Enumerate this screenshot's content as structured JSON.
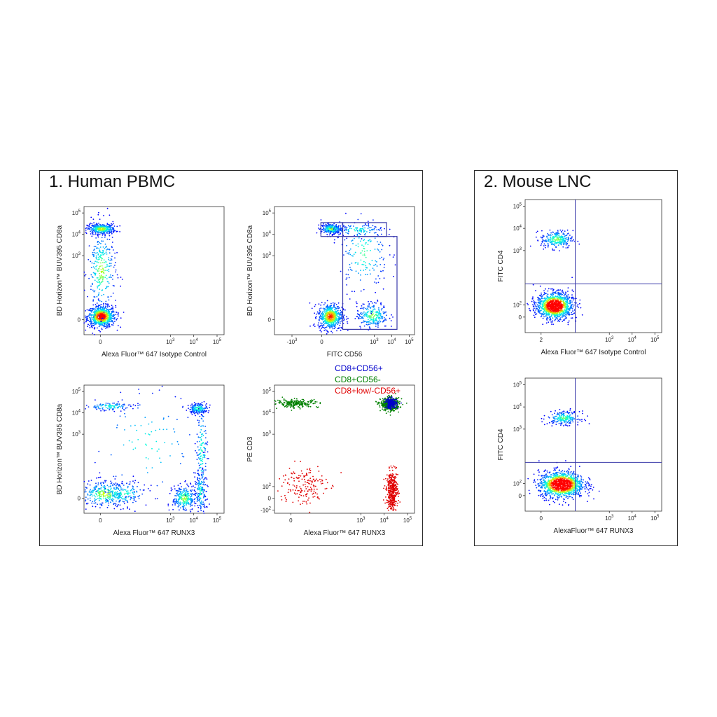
{
  "panels": [
    {
      "title": "1. Human PBMC"
    },
    {
      "title": "2. Mouse LNC"
    }
  ],
  "legend": [
    {
      "label": "CD8+CD56+",
      "color": "#0000cc"
    },
    {
      "label": "CD8+CD56-",
      "color": "#008000"
    },
    {
      "label": "CD8+low/-CD56+",
      "color": "#e00000"
    }
  ],
  "colors": {
    "density_low": "#0000ff",
    "density_mid": "#00ffff",
    "density_midhigh": "#ffff00",
    "density_high": "#ff0000",
    "gate": "#3a3aaa"
  },
  "chart_data": [
    {
      "type": "scatter",
      "panel": "1. Human PBMC",
      "xlabel": "Alexa Fluor™ 647 Isotype Control",
      "ylabel": "BD Horizon™ BUV395 CD8a",
      "xticks": [
        {
          "v": 0,
          "t": "0"
        },
        {
          "v": 3,
          "t": "10",
          "e": "3"
        },
        {
          "v": 4,
          "t": "10",
          "e": "4"
        },
        {
          "v": 5,
          "t": "10",
          "e": "5"
        }
      ],
      "yticks": [
        {
          "v": 0,
          "t": "0"
        },
        {
          "v": 3,
          "t": "10",
          "e": "3"
        },
        {
          "v": 4,
          "t": "10",
          "e": "4"
        },
        {
          "v": 5,
          "t": "10",
          "e": "5"
        }
      ],
      "xlim": [
        -0.7,
        5.3
      ],
      "ylim": [
        -0.7,
        5.3
      ],
      "populations": [
        {
          "x": 0.05,
          "y": 0.15,
          "sx": 0.3,
          "sy": 0.25,
          "weight": 0.55
        },
        {
          "x": 0.05,
          "y": 4.25,
          "sx": 0.3,
          "sy": 0.12,
          "weight": 0.25
        },
        {
          "x": 0.05,
          "y": 2.3,
          "sx": 0.3,
          "sy": 1.0,
          "weight": 0.2
        }
      ]
    },
    {
      "type": "scatter",
      "panel": "1. Human PBMC",
      "xlabel": "FITC CD56",
      "ylabel": "BD Horizon™ BUV395 CD8a",
      "xticks": [
        {
          "v": -1.7,
          "t": "-10",
          "e": "3"
        },
        {
          "v": 0,
          "t": "0"
        },
        {
          "v": 3,
          "t": "10",
          "e": "3"
        },
        {
          "v": 4,
          "t": "10",
          "e": "4"
        },
        {
          "v": 5,
          "t": "10",
          "e": "5"
        }
      ],
      "yticks": [
        {
          "v": 0,
          "t": "0"
        },
        {
          "v": 3,
          "t": "10",
          "e": "3"
        },
        {
          "v": 4,
          "t": "10",
          "e": "4"
        },
        {
          "v": 5,
          "t": "10",
          "e": "5"
        }
      ],
      "xlim": [
        -2.7,
        5.3
      ],
      "ylim": [
        -0.7,
        5.3
      ],
      "gates": [
        {
          "x1": -0.05,
          "x2": 1.2,
          "y1": 3.9,
          "y2": 4.55
        },
        {
          "x1": 1.2,
          "x2": 3.7,
          "y1": 3.9,
          "y2": 4.55
        },
        {
          "x1": 1.2,
          "x2": 4.3,
          "y1": -0.45,
          "y2": 3.9
        }
      ],
      "populations": [
        {
          "x": 0.5,
          "y": 0.15,
          "sx": 0.35,
          "sy": 0.3,
          "weight": 0.42
        },
        {
          "x": 0.55,
          "y": 4.25,
          "sx": 0.3,
          "sy": 0.12,
          "weight": 0.2
        },
        {
          "x": 2.9,
          "y": 0.2,
          "sx": 0.45,
          "sy": 0.3,
          "weight": 0.18
        },
        {
          "x": 2.4,
          "y": 3.1,
          "sx": 0.7,
          "sy": 0.9,
          "weight": 0.12
        },
        {
          "x": 2.0,
          "y": 4.2,
          "sx": 0.8,
          "sy": 0.15,
          "weight": 0.08
        }
      ]
    },
    {
      "type": "scatter",
      "panel": "1. Human PBMC",
      "xlabel": "Alexa Fluor™ 647 RUNX3",
      "ylabel": "BD Horizon™ BUV395 CD8a",
      "xticks": [
        {
          "v": 0,
          "t": "0"
        },
        {
          "v": 3,
          "t": "10",
          "e": "3"
        },
        {
          "v": 4,
          "t": "10",
          "e": "4"
        },
        {
          "v": 5,
          "t": "10",
          "e": "5"
        }
      ],
      "yticks": [
        {
          "v": 0,
          "t": "0"
        },
        {
          "v": 3,
          "t": "10",
          "e": "3"
        },
        {
          "v": 4,
          "t": "10",
          "e": "4"
        },
        {
          "v": 5,
          "t": "10",
          "e": "5"
        }
      ],
      "xlim": [
        -0.7,
        5.3
      ],
      "ylim": [
        -0.7,
        5.3
      ],
      "populations": [
        {
          "x": 0.2,
          "y": 0.2,
          "sx": 0.55,
          "sy": 0.3,
          "weight": 0.22
        },
        {
          "x": 1.0,
          "y": 0.2,
          "sx": 0.5,
          "sy": 0.3,
          "weight": 0.1
        },
        {
          "x": 3.6,
          "y": 0.0,
          "sx": 0.25,
          "sy": 0.3,
          "weight": 0.2
        },
        {
          "x": 4.3,
          "y": 0.3,
          "sx": 0.12,
          "sy": 0.5,
          "weight": 0.1
        },
        {
          "x": 4.2,
          "y": 4.2,
          "sx": 0.2,
          "sy": 0.12,
          "weight": 0.13
        },
        {
          "x": 4.35,
          "y": 2.2,
          "sx": 0.12,
          "sy": 1.2,
          "weight": 0.1
        },
        {
          "x": 0.4,
          "y": 4.3,
          "sx": 0.5,
          "sy": 0.1,
          "weight": 0.08
        },
        {
          "x": 2.0,
          "y": 2.5,
          "sx": 1.2,
          "sy": 1.3,
          "weight": 0.07
        }
      ]
    },
    {
      "type": "scatter",
      "panel": "1. Human PBMC",
      "xlabel": "Alexa Fluor™ 647 RUNX3",
      "ylabel": "PE CD3",
      "xticks": [
        {
          "v": 0,
          "t": "0"
        },
        {
          "v": 3,
          "t": "10",
          "e": "3"
        },
        {
          "v": 4,
          "t": "10",
          "e": "4"
        },
        {
          "v": 5,
          "t": "10",
          "e": "5"
        }
      ],
      "yticks": [
        {
          "v": -0.55,
          "t": "-10",
          "e": "2"
        },
        {
          "v": 0,
          "t": "0"
        },
        {
          "v": 0.55,
          "t": "10",
          "e": "2"
        },
        {
          "v": 3,
          "t": "10",
          "e": "3"
        },
        {
          "v": 4,
          "t": "10",
          "e": "4"
        },
        {
          "v": 5,
          "t": "10",
          "e": "5"
        }
      ],
      "xlim": [
        -0.7,
        5.3
      ],
      "ylim": [
        -0.7,
        5.3
      ],
      "populations": [
        {
          "x": 0.2,
          "y": 4.45,
          "sx": 0.5,
          "sy": 0.1,
          "weight": 0.15,
          "legend_index": 1
        },
        {
          "x": 4.25,
          "y": 4.4,
          "sx": 0.2,
          "sy": 0.15,
          "weight": 0.3,
          "legend_index": 1
        },
        {
          "x": 4.3,
          "y": 4.45,
          "sx": 0.12,
          "sy": 0.12,
          "weight": 0.15,
          "legend_index": 0
        },
        {
          "x": 4.35,
          "y": 0.35,
          "sx": 0.12,
          "sy": 0.45,
          "weight": 0.28,
          "legend_index": 2
        },
        {
          "x": 0.5,
          "y": 0.6,
          "sx": 0.5,
          "sy": 0.5,
          "weight": 0.12,
          "legend_index": 2
        }
      ]
    },
    {
      "type": "scatter",
      "panel": "2. Mouse LNC",
      "xlabel": "Alexa Fluor™ 647 Isotype Control",
      "ylabel": "FITC CD4",
      "xticks": [
        {
          "v": 0,
          "t": "2"
        },
        {
          "v": 3,
          "t": "10",
          "e": "3"
        },
        {
          "v": 4,
          "t": "10",
          "e": "4"
        },
        {
          "v": 5,
          "t": "10",
          "e": "5"
        }
      ],
      "yticks": [
        {
          "v": 0,
          "t": "0"
        },
        {
          "v": 0.55,
          "t": "10",
          "e": "2"
        },
        {
          "v": 3,
          "t": "10",
          "e": "3"
        },
        {
          "v": 4,
          "t": "10",
          "e": "4"
        },
        {
          "v": 5,
          "t": "10",
          "e": "5"
        }
      ],
      "xlim": [
        -0.7,
        5.3
      ],
      "ylim": [
        -0.7,
        5.3
      ],
      "quadrant": {
        "x": 1.5,
        "y": 1.5
      },
      "populations": [
        {
          "x": 0.6,
          "y": 0.5,
          "sx": 0.4,
          "sy": 0.3,
          "weight": 0.82
        },
        {
          "x": 0.7,
          "y": 3.5,
          "sx": 0.35,
          "sy": 0.2,
          "weight": 0.18
        }
      ]
    },
    {
      "type": "scatter",
      "panel": "2. Mouse LNC",
      "xlabel": "AlexaFluor™ 647 RUNX3",
      "ylabel": "FITC CD4",
      "xticks": [
        {
          "v": 0,
          "t": "0"
        },
        {
          "v": 3,
          "t": "10",
          "e": "3"
        },
        {
          "v": 4,
          "t": "10",
          "e": "4"
        },
        {
          "v": 5,
          "t": "10",
          "e": "5"
        }
      ],
      "yticks": [
        {
          "v": 0,
          "t": "0"
        },
        {
          "v": 0.55,
          "t": "10",
          "e": "2"
        },
        {
          "v": 3,
          "t": "10",
          "e": "3"
        },
        {
          "v": 4,
          "t": "10",
          "e": "4"
        },
        {
          "v": 5,
          "t": "10",
          "e": "5"
        }
      ],
      "xlim": [
        -0.7,
        5.3
      ],
      "ylim": [
        -0.7,
        5.3
      ],
      "quadrant": {
        "x": 1.5,
        "y": 1.5
      },
      "populations": [
        {
          "x": 0.9,
          "y": 0.5,
          "sx": 0.5,
          "sy": 0.3,
          "weight": 0.85
        },
        {
          "x": 1.0,
          "y": 3.5,
          "sx": 0.35,
          "sy": 0.15,
          "weight": 0.15
        }
      ]
    }
  ]
}
